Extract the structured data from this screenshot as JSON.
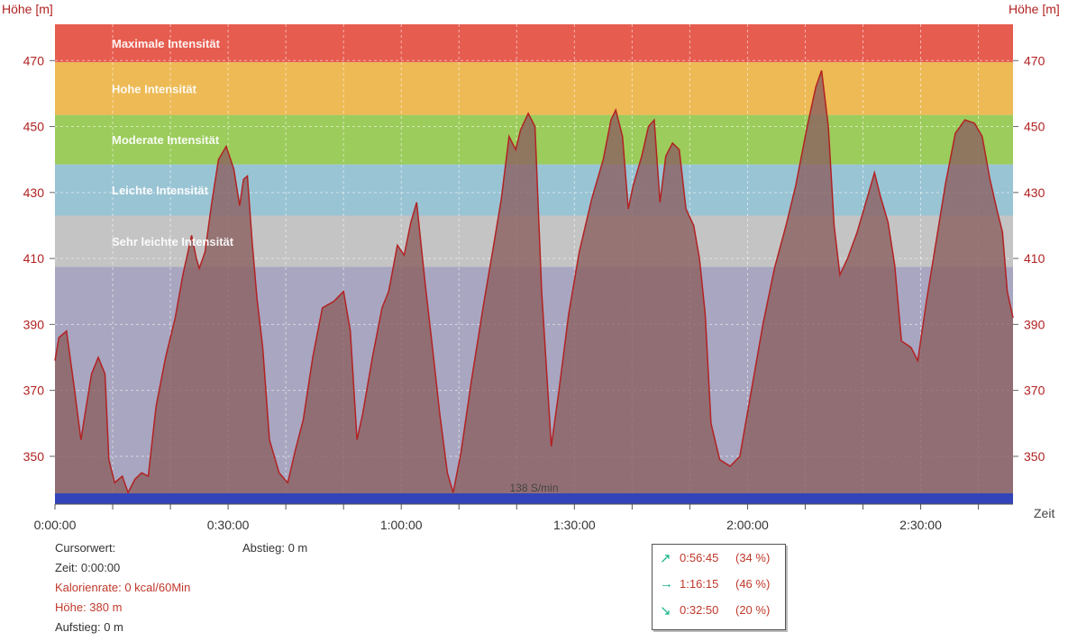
{
  "colors": {
    "profile_fill": "#8b6060",
    "profile_line": "#b22222",
    "base_band": "#a8a6c0",
    "bottom_bar": "#3344bb",
    "axis_label": "#b22222",
    "trend_arrow": "#19b38a"
  },
  "chart_data": {
    "type": "area",
    "y_axis_label_left": "Höhe [m]",
    "y_axis_label_right": "Höhe [m]",
    "x_axis_label": "Zeit",
    "x_tick_labels": [
      "0:00:00",
      "0:30:00",
      "1:00:00",
      "1:30:00",
      "2:00:00",
      "2:30:00"
    ],
    "y_tick_labels": [
      "350",
      "370",
      "390",
      "410",
      "430",
      "450",
      "470"
    ],
    "y_ticks": [
      350,
      370,
      390,
      410,
      430,
      450,
      470
    ],
    "x_ticks_seconds": [
      0,
      1800,
      3600,
      5400,
      7200,
      9000
    ],
    "xlim_seconds": [
      0,
      9960
    ],
    "ylim": [
      335.5,
      481
    ],
    "grid": true,
    "zones": [
      {
        "label": "Maximale Intensität",
        "from": 469.5,
        "to": 481,
        "color": "#e65c4f"
      },
      {
        "label": "Hohe Intensität",
        "from": 453.5,
        "to": 469.5,
        "color": "#edba55"
      },
      {
        "label": "Moderate Intensität",
        "from": 438.5,
        "to": 453.5,
        "color": "#9ccc5c"
      },
      {
        "label": "Leichte Intensität",
        "from": 423,
        "to": 438.5,
        "color": "#99c4d4"
      },
      {
        "label": "Sehr leichte Intensität",
        "from": 407.5,
        "to": 423,
        "color": "#c4c4c4"
      }
    ],
    "bottom_label": "138 S/min",
    "series": [
      {
        "points": [
          [
            0,
            379
          ],
          [
            40,
            386
          ],
          [
            120,
            388
          ],
          [
            200,
            371
          ],
          [
            270,
            355
          ],
          [
            330,
            366
          ],
          [
            380,
            375
          ],
          [
            450,
            380
          ],
          [
            520,
            375
          ],
          [
            560,
            349
          ],
          [
            620,
            342
          ],
          [
            700,
            344
          ],
          [
            760,
            339
          ],
          [
            830,
            343
          ],
          [
            900,
            345
          ],
          [
            970,
            344
          ],
          [
            1050,
            365
          ],
          [
            1150,
            380
          ],
          [
            1250,
            392
          ],
          [
            1330,
            405
          ],
          [
            1420,
            417
          ],
          [
            1470,
            410
          ],
          [
            1500,
            407
          ],
          [
            1560,
            412
          ],
          [
            1630,
            427
          ],
          [
            1700,
            440
          ],
          [
            1780,
            444
          ],
          [
            1860,
            437
          ],
          [
            1920,
            426
          ],
          [
            1960,
            434
          ],
          [
            2000,
            435
          ],
          [
            2050,
            415
          ],
          [
            2100,
            398
          ],
          [
            2160,
            383
          ],
          [
            2230,
            355
          ],
          [
            2330,
            345
          ],
          [
            2420,
            342
          ],
          [
            2500,
            352
          ],
          [
            2580,
            361
          ],
          [
            2680,
            380
          ],
          [
            2780,
            395
          ],
          [
            2900,
            397
          ],
          [
            3000,
            400
          ],
          [
            3070,
            388
          ],
          [
            3140,
            355
          ],
          [
            3200,
            363
          ],
          [
            3300,
            380
          ],
          [
            3400,
            395
          ],
          [
            3470,
            400
          ],
          [
            3560,
            414
          ],
          [
            3630,
            411
          ],
          [
            3700,
            421
          ],
          [
            3760,
            427
          ],
          [
            3850,
            402
          ],
          [
            3920,
            384
          ],
          [
            4000,
            363
          ],
          [
            4080,
            345
          ],
          [
            4140,
            339
          ],
          [
            4220,
            351
          ],
          [
            4330,
            373
          ],
          [
            4450,
            395
          ],
          [
            4560,
            414
          ],
          [
            4640,
            428
          ],
          [
            4720,
            447
          ],
          [
            4790,
            443
          ],
          [
            4840,
            449
          ],
          [
            4920,
            454
          ],
          [
            4990,
            450
          ],
          [
            5060,
            400
          ],
          [
            5160,
            353
          ],
          [
            5240,
            370
          ],
          [
            5340,
            393
          ],
          [
            5450,
            412
          ],
          [
            5580,
            428
          ],
          [
            5700,
            440
          ],
          [
            5780,
            452
          ],
          [
            5830,
            455
          ],
          [
            5900,
            447
          ],
          [
            5960,
            425
          ],
          [
            6010,
            432
          ],
          [
            6100,
            441
          ],
          [
            6170,
            450
          ],
          [
            6230,
            452
          ],
          [
            6290,
            427
          ],
          [
            6350,
            441
          ],
          [
            6420,
            445
          ],
          [
            6490,
            443
          ],
          [
            6560,
            425
          ],
          [
            6640,
            420
          ],
          [
            6700,
            410
          ],
          [
            6760,
            393
          ],
          [
            6820,
            360
          ],
          [
            6910,
            349
          ],
          [
            7020,
            347
          ],
          [
            7120,
            350
          ],
          [
            7240,
            370
          ],
          [
            7360,
            390
          ],
          [
            7480,
            407
          ],
          [
            7600,
            420
          ],
          [
            7700,
            432
          ],
          [
            7820,
            450
          ],
          [
            7910,
            462
          ],
          [
            7970,
            467
          ],
          [
            8040,
            450
          ],
          [
            8100,
            420
          ],
          [
            8160,
            405
          ],
          [
            8240,
            410
          ],
          [
            8340,
            418
          ],
          [
            8440,
            428
          ],
          [
            8520,
            436
          ],
          [
            8580,
            429
          ],
          [
            8660,
            421
          ],
          [
            8730,
            408
          ],
          [
            8800,
            385
          ],
          [
            8900,
            383
          ],
          [
            8970,
            379
          ],
          [
            9060,
            397
          ],
          [
            9160,
            415
          ],
          [
            9260,
            433
          ],
          [
            9360,
            448
          ],
          [
            9460,
            452
          ],
          [
            9560,
            451
          ],
          [
            9640,
            447
          ],
          [
            9720,
            434
          ],
          [
            9790,
            425
          ],
          [
            9850,
            418
          ],
          [
            9900,
            400
          ],
          [
            9960,
            392
          ]
        ]
      }
    ]
  },
  "cursor_panel": {
    "title": "Cursorwert:",
    "zeit": "Zeit: 0:00:00",
    "kalorienrate": "Kalorienrate: 0 kcal/60Min",
    "hoehe": "Höhe:  380 m",
    "aufstieg": "Aufstieg: 0 m",
    "abstieg": "Abstieg: 0 m"
  },
  "trend_legend": [
    {
      "icon": "arrow-up-icon",
      "glyph": "↗",
      "time": "0:56:45",
      "pct": "(34 %)"
    },
    {
      "icon": "arrow-flat-icon",
      "glyph": "→",
      "time": "1:16:15",
      "pct": "(46 %)"
    },
    {
      "icon": "arrow-down-icon",
      "glyph": "↘",
      "time": "0:32:50",
      "pct": "(20 %)"
    }
  ]
}
